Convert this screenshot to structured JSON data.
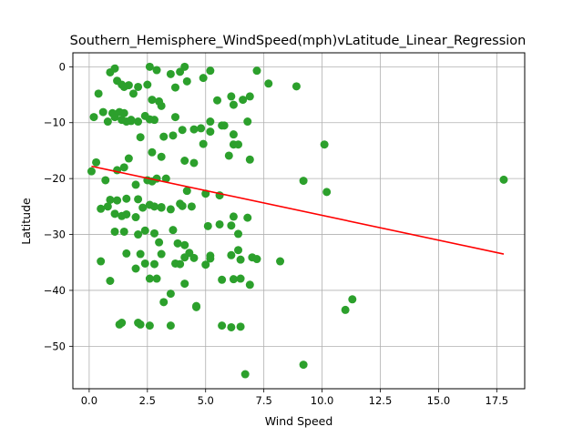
{
  "chart_data": {
    "type": "scatter",
    "title": "Southern_Hemisphere_WindSpeed(mph)vLatitude_Linear_Regression",
    "xlabel": "Wind Speed",
    "ylabel": "Latitude",
    "xlim": [
      -0.7,
      18.7
    ],
    "ylim": [
      -57.6,
      2.5
    ],
    "xticks": [
      0.0,
      2.5,
      5.0,
      7.5,
      10.0,
      12.5,
      15.0,
      17.5
    ],
    "xtick_labels": [
      "0.0",
      "2.5",
      "5.0",
      "7.5",
      "10.0",
      "12.5",
      "15.0",
      "17.5"
    ],
    "yticks": [
      0,
      -10,
      -20,
      -30,
      -40,
      -50
    ],
    "ytick_labels": [
      "0",
      "−10",
      "−20",
      "−30",
      "−40",
      "−50"
    ],
    "grid": true,
    "colors": {
      "points": "#2ca02c",
      "regression": "#ff0000",
      "grid": "#b0b0b0"
    },
    "series": [
      {
        "kind": "points",
        "x": [
          0.9,
          1.1,
          1.2,
          1.4,
          1.5,
          1.7,
          1.9,
          2.1,
          2.5,
          2.6,
          2.9,
          3.1,
          2.7,
          3.0,
          3.5,
          3.7,
          3.9,
          4.1,
          4.2,
          4.9,
          5.2,
          5.5,
          6.1,
          6.2,
          6.6,
          6.9,
          7.2,
          7.7,
          8.9,
          0.4,
          0.8,
          1.1,
          1.3,
          1.6,
          1.8,
          2.1,
          2.4,
          2.8,
          3.2,
          3.7,
          4.0,
          4.5,
          4.9,
          5.2,
          5.8,
          6.2,
          6.8,
          0.2,
          0.6,
          1.0,
          1.4,
          1.5,
          1.8,
          2.2,
          2.6,
          2.7,
          3.1,
          3.6,
          4.1,
          4.5,
          4.8,
          5.2,
          5.7,
          6.0,
          6.2,
          6.4,
          6.9,
          10.1,
          1.2,
          1.5,
          1.7,
          2.0,
          2.5,
          2.7,
          2.9,
          3.3,
          0.1,
          0.3,
          0.7,
          0.9,
          1.2,
          1.6,
          2.1,
          2.6,
          3.1,
          3.9,
          4.0,
          4.2,
          5.0,
          5.6,
          6.2,
          6.8,
          9.2,
          10.2,
          17.8,
          0.5,
          0.8,
          1.1,
          1.4,
          1.6,
          2.0,
          2.3,
          2.8,
          3.1,
          3.5,
          4.0,
          4.4,
          5.1,
          5.6,
          6.1,
          6.4,
          1.1,
          1.5,
          2.1,
          2.4,
          2.8,
          3.0,
          3.6,
          3.8,
          4.1,
          4.3,
          5.2,
          6.1,
          6.4,
          6.5,
          7.0,
          7.2,
          0.5,
          1.6,
          2.2,
          2.4,
          2.8,
          3.1,
          3.7,
          3.9,
          4.1,
          4.5,
          5.0,
          5.2,
          5.7,
          6.2,
          6.5,
          6.9,
          8.2,
          0.9,
          2.0,
          2.6,
          2.9,
          3.2,
          3.5,
          4.1,
          4.6,
          4.6,
          5.7,
          6.1,
          11.3,
          11.0,
          1.4,
          1.3,
          2.1,
          2.2,
          2.6,
          3.5,
          6.5,
          9.2,
          6.7
        ],
        "y": [
          -1.0,
          -0.3,
          -2.5,
          -3.2,
          -3.6,
          -3.3,
          -4.8,
          -3.6,
          -3.2,
          0.0,
          -0.6,
          -7.0,
          -5.9,
          -6.2,
          -1.3,
          -3.7,
          -0.9,
          0.0,
          -2.6,
          -2.0,
          -0.7,
          -6.0,
          -5.3,
          -6.8,
          -5.9,
          -5.3,
          -0.7,
          -3.0,
          -3.5,
          -4.8,
          -9.8,
          -9.0,
          -8.1,
          -9.8,
          -9.5,
          -9.8,
          -8.8,
          -9.5,
          -12.5,
          -9.0,
          -11.3,
          -11.2,
          -13.8,
          -9.8,
          -10.5,
          -12.1,
          -9.8,
          -9.0,
          -8.1,
          -8.3,
          -9.5,
          -8.3,
          -9.7,
          -12.6,
          -9.4,
          -15.3,
          -16.1,
          -12.3,
          -16.8,
          -17.2,
          -11.0,
          -11.6,
          -10.5,
          -15.9,
          -13.9,
          -13.9,
          -16.6,
          -13.9,
          -18.5,
          -18.0,
          -16.4,
          -21.1,
          -20.3,
          -20.5,
          -20.0,
          -20.0,
          -18.7,
          -17.1,
          -20.3,
          -23.8,
          -23.9,
          -23.6,
          -23.7,
          -24.7,
          -25.2,
          -24.5,
          -24.9,
          -22.2,
          -22.7,
          -23.0,
          -26.8,
          -27.0,
          -20.4,
          -22.4,
          -20.2,
          -25.4,
          -25.0,
          -26.3,
          -26.7,
          -26.4,
          -26.9,
          -25.2,
          -25.0,
          -25.1,
          -25.5,
          -24.9,
          -25.0,
          -28.5,
          -28.2,
          -28.4,
          -29.9,
          -29.5,
          -29.5,
          -30.0,
          -29.3,
          -29.8,
          -31.4,
          -29.2,
          -31.6,
          -31.9,
          -33.3,
          -33.8,
          -33.7,
          -32.8,
          -34.5,
          -34.1,
          -34.4,
          -34.8,
          -33.4,
          -33.5,
          -35.2,
          -35.3,
          -33.5,
          -35.2,
          -35.3,
          -34.1,
          -34.2,
          -35.4,
          -34.3,
          -38.1,
          -38.0,
          -37.9,
          -39.0,
          -34.8,
          -38.3,
          -36.1,
          -37.9,
          -37.9,
          -42.1,
          -40.6,
          -38.8,
          -43.0,
          -42.8,
          -46.3,
          -46.6,
          -41.6,
          -43.5,
          -45.8,
          -46.1,
          -45.8,
          -46.1,
          -46.3,
          -46.3,
          -46.5,
          -53.3,
          -55.0
        ]
      },
      {
        "kind": "regression",
        "x": [
          0.1,
          17.8
        ],
        "y": [
          -17.8,
          -33.5
        ]
      }
    ]
  }
}
